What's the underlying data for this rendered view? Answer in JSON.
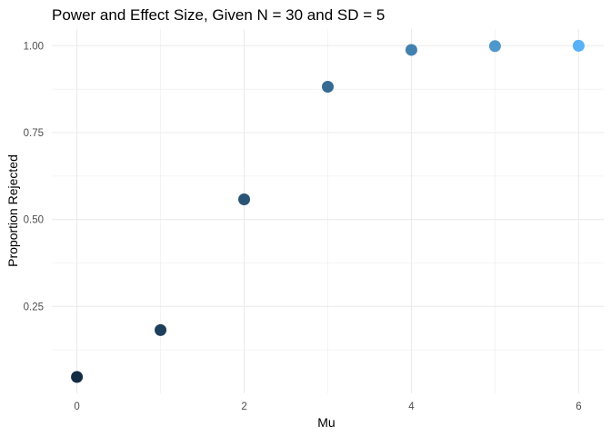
{
  "chart_data": {
    "type": "scatter",
    "title": "Power and Effect Size, Given N = 30 and SD = 5",
    "xlabel": "Mu",
    "ylabel": "Proportion Rejected",
    "x": [
      0,
      1,
      2,
      3,
      4,
      5,
      6
    ],
    "y": [
      0.047,
      0.182,
      0.558,
      0.882,
      0.988,
      0.999,
      1.0
    ],
    "xlim": [
      -0.3,
      6.3
    ],
    "ylim": [
      0.0,
      1.048
    ],
    "x_ticks": [
      0,
      2,
      4,
      6
    ],
    "x_tick_labels": [
      "0",
      "2",
      "4",
      "6"
    ],
    "y_ticks": [
      0.25,
      0.5,
      0.75,
      1.0
    ],
    "y_tick_labels": [
      "0.25",
      "0.50",
      "0.75",
      "1.00"
    ],
    "grid": true,
    "legend": "none",
    "point_colors": [
      "#132B43",
      "#1E3F5C",
      "#2A5476",
      "#366A92",
      "#4281AF",
      "#4F98CB",
      "#56B1F7"
    ]
  }
}
